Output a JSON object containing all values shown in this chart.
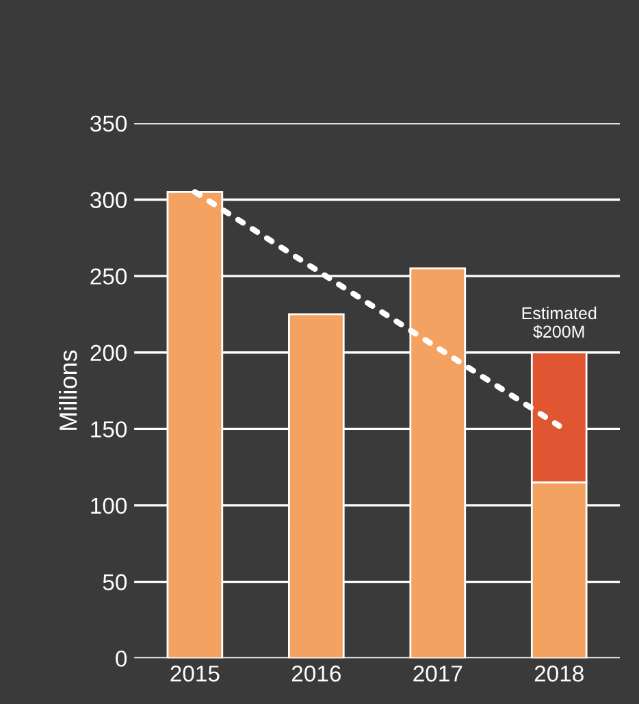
{
  "chart_data": {
    "type": "bar",
    "stacked": true,
    "ylabel": "Millions",
    "categories": [
      "2015",
      "2016",
      "2017",
      "2018"
    ],
    "series": [
      {
        "color": "#f4a261",
        "values": [
          305,
          225,
          255,
          115
        ]
      },
      {
        "color": "#e05532",
        "values": [
          null,
          null,
          null,
          85
        ]
      },
      {
        "type": "line",
        "color": "#ffffff",
        "line_style": "dotted",
        "values": [
          305,
          254,
          203,
          152
        ]
      }
    ],
    "ylim": [
      0,
      350
    ],
    "yticks": [
      0,
      50,
      100,
      150,
      200,
      250,
      300,
      350
    ],
    "grid": "y",
    "legend": false,
    "annotations": [
      {
        "text": "Estimated\n$200M",
        "x": "2018",
        "y": 200
      }
    ]
  }
}
